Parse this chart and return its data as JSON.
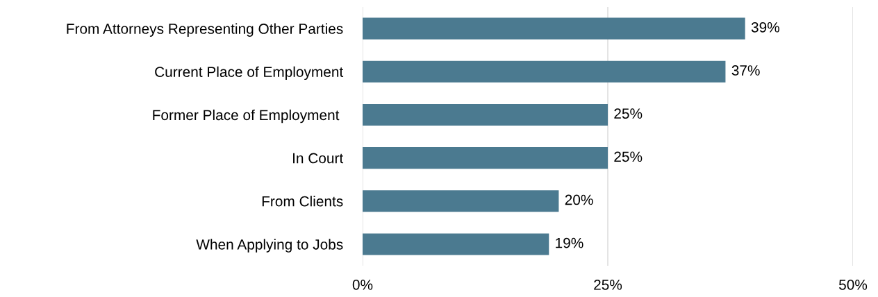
{
  "chart_data": {
    "type": "bar",
    "orientation": "horizontal",
    "categories": [
      "From Attorneys Representing Other Parties",
      "Current Place of Employment",
      "Former Place of Employment ",
      "In Court",
      "From Clients",
      "When Applying to Jobs"
    ],
    "values": [
      39,
      37,
      25,
      25,
      20,
      19
    ],
    "value_labels": [
      "39%",
      "37%",
      "25%",
      "25%",
      "20%",
      "19%"
    ],
    "color": "#4b7a90",
    "xlim": [
      0,
      50
    ],
    "xticks": [
      {
        "value": 0,
        "label": "0%"
      },
      {
        "value": 25,
        "label": "25%"
      },
      {
        "value": 50,
        "label": "50%"
      }
    ],
    "grid": "x"
  }
}
